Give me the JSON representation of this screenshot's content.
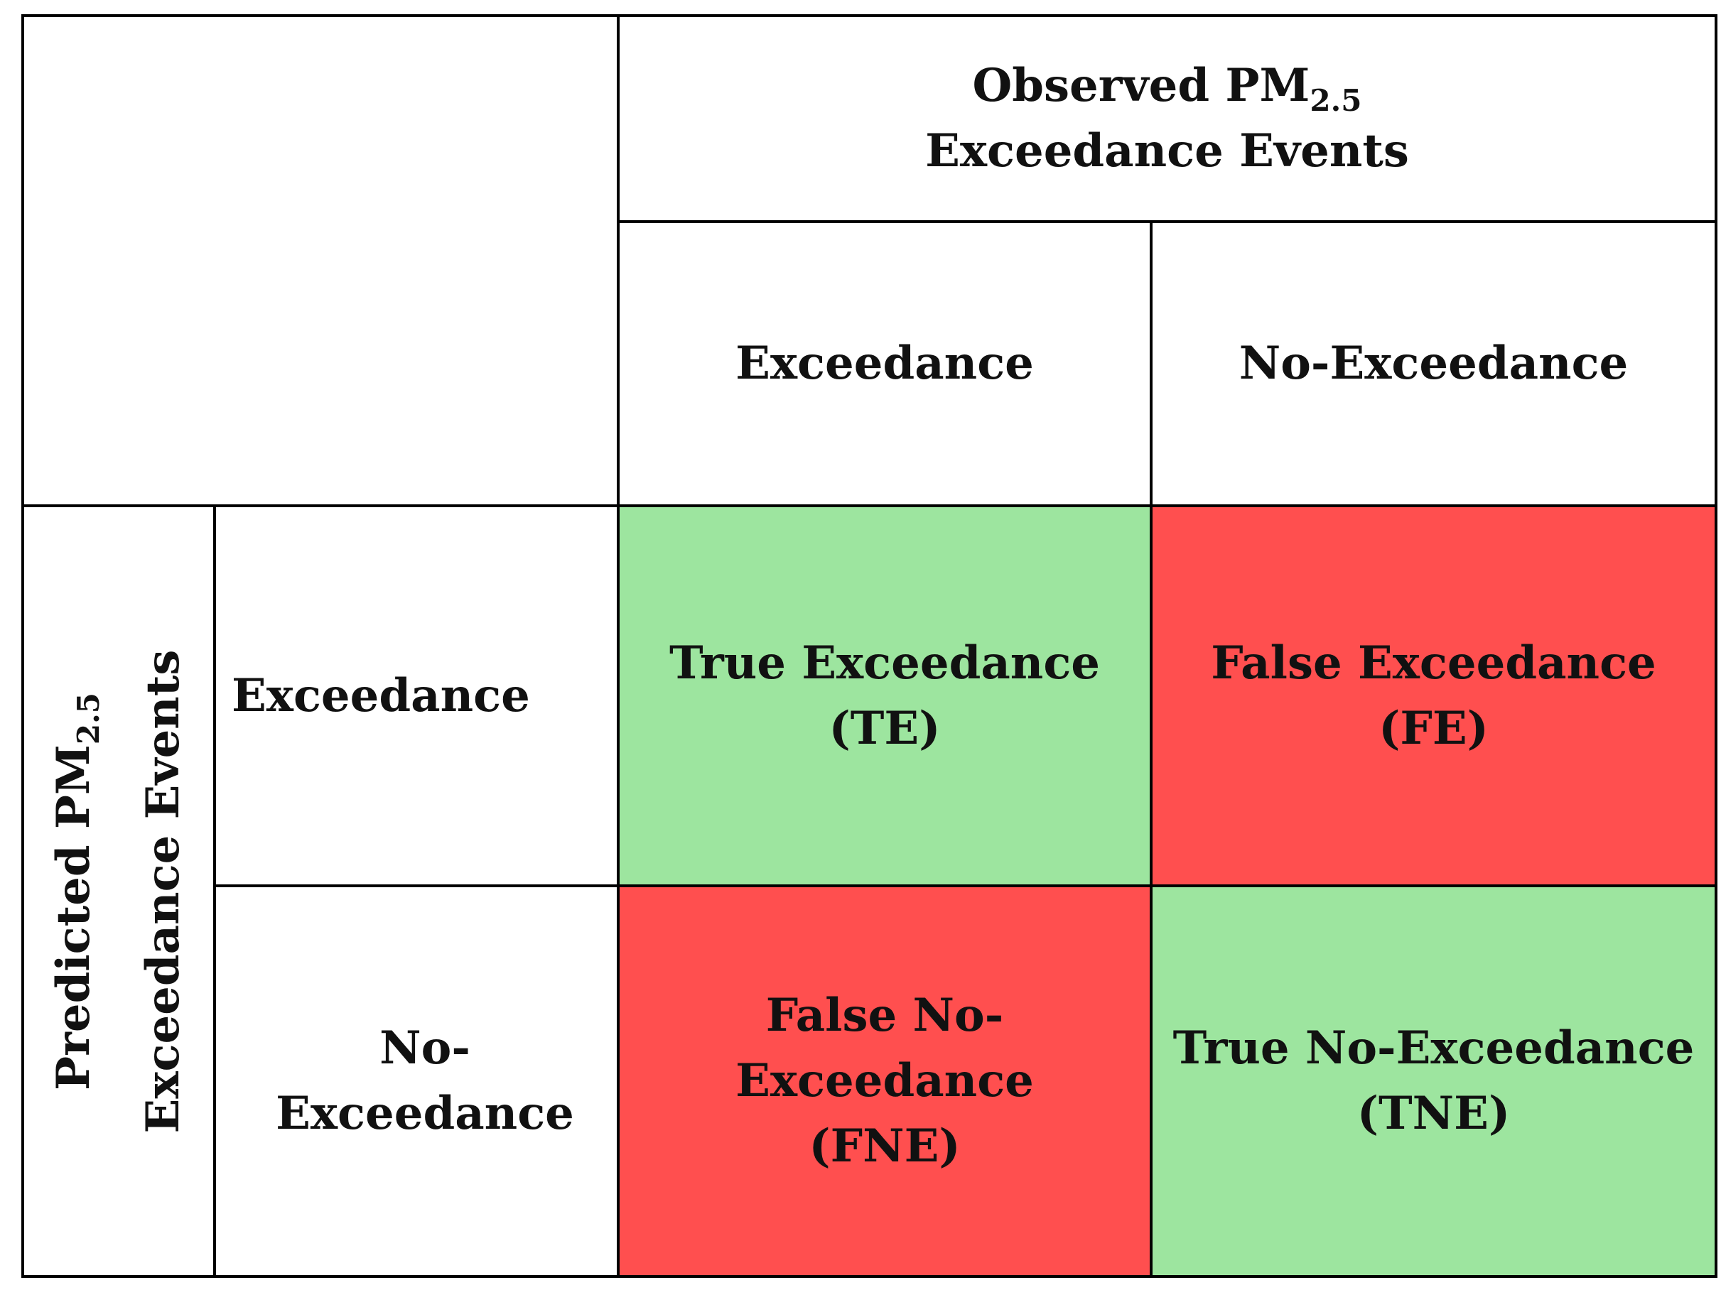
{
  "header": {
    "observed_line1_prefix": "Observed PM",
    "observed_line1_sub": "2.5",
    "observed_line2": "Exceedance Events"
  },
  "columns": {
    "exceedance": "Exceedance",
    "no_exceedance": "No-Exceedance"
  },
  "side": {
    "predicted_line1_prefix": "Predicted PM",
    "predicted_line1_sub": "2.5",
    "predicted_line2": "Exceedance Events"
  },
  "rows": {
    "exceedance": "Exceedance",
    "no_exceedance": "No-Exceedance"
  },
  "matrix": {
    "te_label": "True Exceedance",
    "te_abbr": "(TE)",
    "fe_label": "False Exceedance",
    "fe_abbr": "(FE)",
    "fne_label": "False No-Exceedance",
    "fne_abbr": "(FNE)",
    "tne_label": "True No-Exceedance",
    "tne_abbr": "(TNE)"
  },
  "colors": {
    "true_cell": "#9de59f",
    "false_cell": "#ff4f4f",
    "border": "#000000"
  }
}
